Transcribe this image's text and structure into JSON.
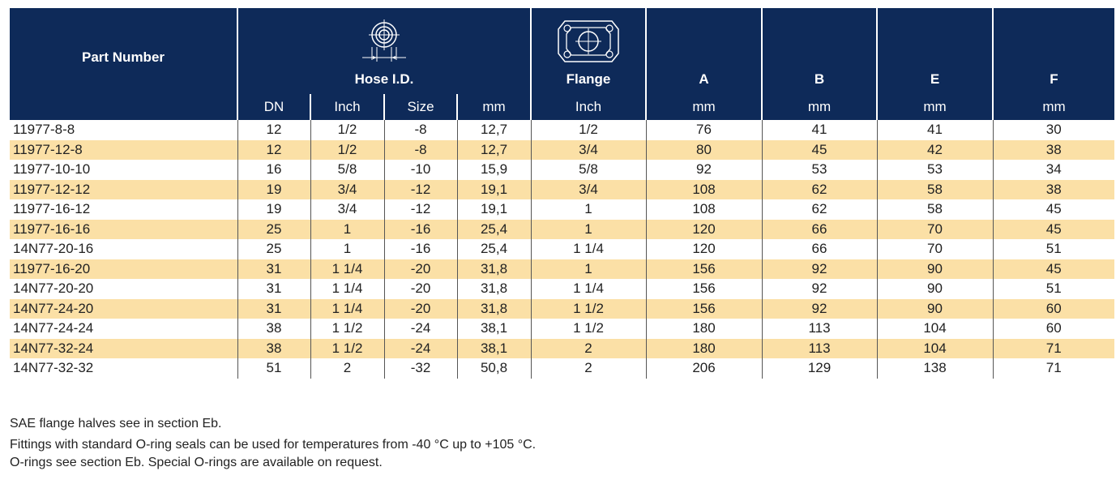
{
  "header": {
    "part_number": "Part Number",
    "hose_id": "Hose I.D.",
    "flange": "Flange",
    "a": "A",
    "b": "B",
    "e": "E",
    "f": "F",
    "units": [
      "DN",
      "Inch",
      "Size",
      "mm",
      "Inch",
      "mm",
      "mm",
      "mm",
      "mm"
    ]
  },
  "icons": {
    "hose_icon": "flange-half-round-icon",
    "flange_icon": "flange-four-bolt-icon"
  },
  "colors": {
    "header_bg": "#0e2a59",
    "alt_row": "#fbe0a6"
  },
  "rows": [
    [
      "11977-8-8",
      "12",
      "1/2",
      "-8",
      "12,7",
      "1/2",
      "76",
      "41",
      "41",
      "30"
    ],
    [
      "11977-12-8",
      "12",
      "1/2",
      "-8",
      "12,7",
      "3/4",
      "80",
      "45",
      "42",
      "38"
    ],
    [
      "11977-10-10",
      "16",
      "5/8",
      "-10",
      "15,9",
      "5/8",
      "92",
      "53",
      "53",
      "34"
    ],
    [
      "11977-12-12",
      "19",
      "3/4",
      "-12",
      "19,1",
      "3/4",
      "108",
      "62",
      "58",
      "38"
    ],
    [
      "11977-16-12",
      "19",
      "3/4",
      "-12",
      "19,1",
      "1",
      "108",
      "62",
      "58",
      "45"
    ],
    [
      "11977-16-16",
      "25",
      "1",
      "-16",
      "25,4",
      "1",
      "120",
      "66",
      "70",
      "45"
    ],
    [
      "14N77-20-16",
      "25",
      "1",
      "-16",
      "25,4",
      "1 1/4",
      "120",
      "66",
      "70",
      "51"
    ],
    [
      "11977-16-20",
      "31",
      "1 1/4",
      "-20",
      "31,8",
      "1",
      "156",
      "92",
      "90",
      "45"
    ],
    [
      "14N77-20-20",
      "31",
      "1 1/4",
      "-20",
      "31,8",
      "1 1/4",
      "156",
      "92",
      "90",
      "51"
    ],
    [
      "14N77-24-20",
      "31",
      "1 1/4",
      "-20",
      "31,8",
      "1 1/2",
      "156",
      "92",
      "90",
      "60"
    ],
    [
      "14N77-24-24",
      "38",
      "1 1/2",
      "-24",
      "38,1",
      "1 1/2",
      "180",
      "113",
      "104",
      "60"
    ],
    [
      "14N77-32-24",
      "38",
      "1 1/2",
      "-24",
      "38,1",
      "2",
      "180",
      "113",
      "104",
      "71"
    ],
    [
      "14N77-32-32",
      "51",
      "2",
      "-32",
      "50,8",
      "2",
      "206",
      "129",
      "138",
      "71"
    ]
  ],
  "notes": [
    "SAE flange halves see in section Eb.",
    "Fittings with standard O-ring seals can be used for temperatures from -40 °C up to +105 °C.",
    "O-rings see section Eb. Special O-rings are available on request."
  ]
}
